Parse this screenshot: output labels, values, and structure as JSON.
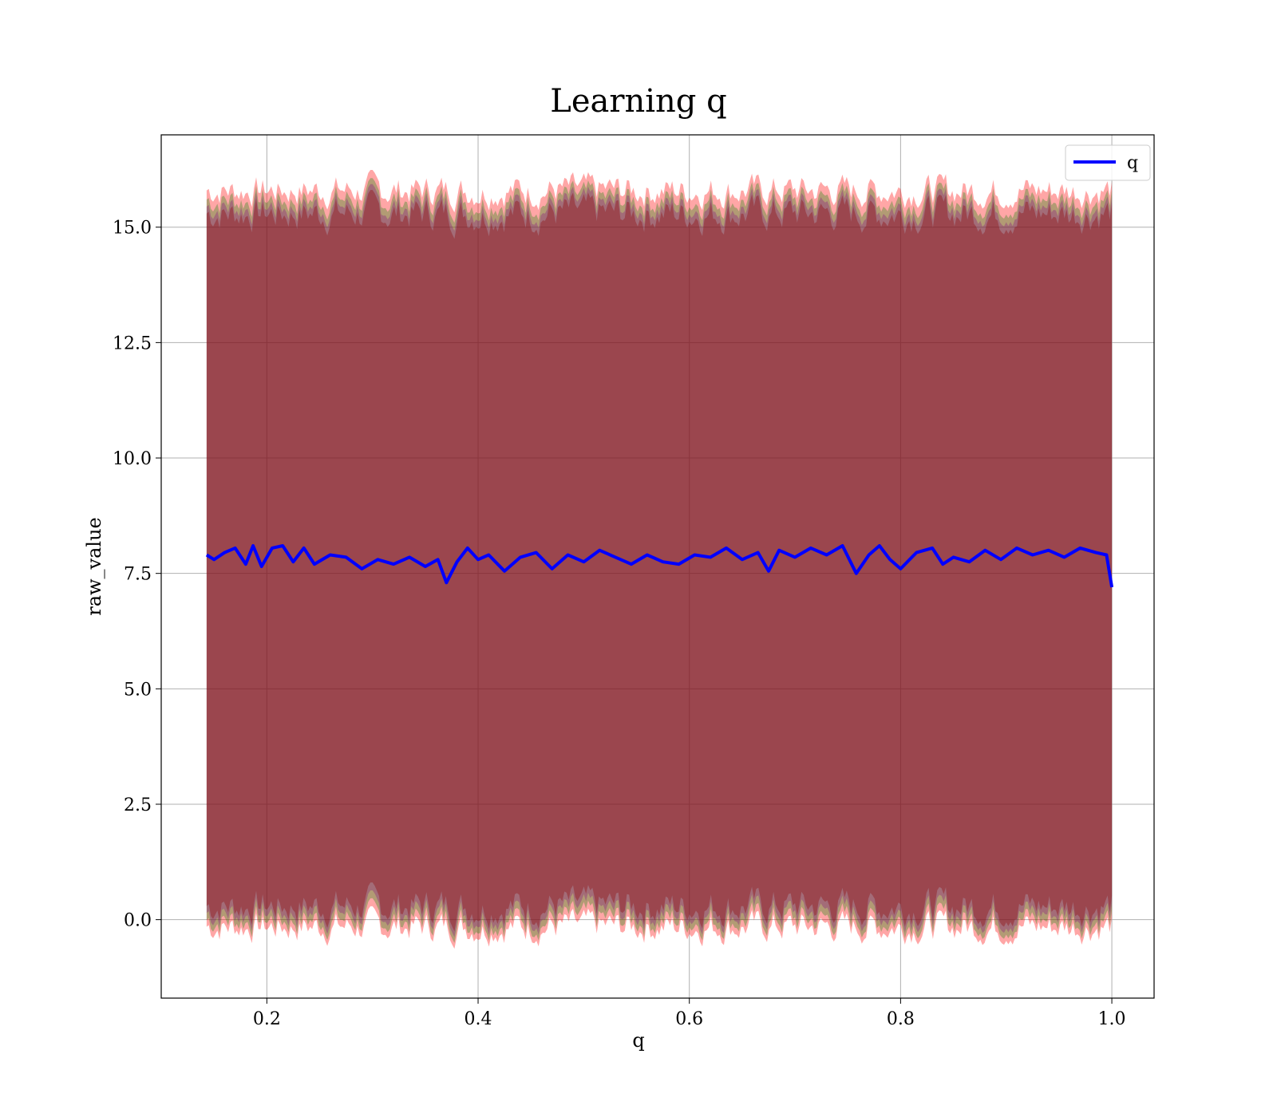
{
  "chart_data": {
    "type": "line",
    "title": "Learning q",
    "xlabel": "q",
    "ylabel": "raw_value",
    "xlim": [
      0.1,
      1.04
    ],
    "ylim": [
      -1.7,
      17.0
    ],
    "xticks": [
      "0.2",
      "0.4",
      "0.6",
      "0.8",
      "1.0"
    ],
    "xtick_values": [
      0.2,
      0.4,
      0.6,
      0.8,
      1.0
    ],
    "yticks": [
      "0.0",
      "2.5",
      "5.0",
      "7.5",
      "10.0",
      "12.5",
      "15.0"
    ],
    "ytick_values": [
      0.0,
      2.5,
      5.0,
      7.5,
      10.0,
      12.5,
      15.0
    ],
    "grid": true,
    "legend_placement": "top-right",
    "x_range": [
      0.143,
      1.0
    ],
    "series": [
      {
        "name": "q",
        "color": "#0000ff",
        "mean": 7.85,
        "x": [
          0.143,
          0.15,
          0.16,
          0.17,
          0.18,
          0.187,
          0.195,
          0.205,
          0.215,
          0.225,
          0.235,
          0.245,
          0.26,
          0.275,
          0.29,
          0.305,
          0.32,
          0.335,
          0.35,
          0.362,
          0.37,
          0.38,
          0.39,
          0.4,
          0.41,
          0.425,
          0.44,
          0.455,
          0.47,
          0.485,
          0.5,
          0.515,
          0.53,
          0.545,
          0.56,
          0.575,
          0.59,
          0.605,
          0.62,
          0.635,
          0.65,
          0.665,
          0.675,
          0.685,
          0.7,
          0.715,
          0.73,
          0.745,
          0.758,
          0.77,
          0.78,
          0.79,
          0.8,
          0.815,
          0.83,
          0.84,
          0.85,
          0.865,
          0.88,
          0.895,
          0.91,
          0.925,
          0.94,
          0.955,
          0.97,
          0.985,
          0.995,
          1.0
        ],
        "y": [
          7.9,
          7.8,
          7.95,
          8.05,
          7.7,
          8.1,
          7.65,
          8.05,
          8.1,
          7.75,
          8.05,
          7.7,
          7.9,
          7.85,
          7.6,
          7.8,
          7.7,
          7.85,
          7.65,
          7.8,
          7.3,
          7.75,
          8.05,
          7.8,
          7.9,
          7.55,
          7.85,
          7.95,
          7.6,
          7.9,
          7.75,
          8.0,
          7.85,
          7.7,
          7.9,
          7.75,
          7.7,
          7.9,
          7.85,
          8.05,
          7.8,
          7.95,
          7.55,
          8.0,
          7.85,
          8.05,
          7.9,
          8.1,
          7.5,
          7.9,
          8.1,
          7.8,
          7.6,
          7.95,
          8.05,
          7.7,
          7.85,
          7.75,
          8.0,
          7.8,
          8.05,
          7.9,
          8.0,
          7.85,
          8.05,
          7.95,
          7.9,
          7.2
        ]
      }
    ],
    "bands": [
      {
        "color": "#ff0000",
        "opacity": 0.35,
        "lower_edge": -0.15,
        "upper_edge": 15.8
      },
      {
        "color": "#008000",
        "opacity": 0.3,
        "lower_edge": 0.0,
        "upper_edge": 15.6
      },
      {
        "color": "#800080",
        "opacity": 0.3,
        "lower_edge": 0.15,
        "upper_edge": 15.45
      },
      {
        "color": "#8b0000",
        "opacity": 0.35,
        "lower_edge": 0.3,
        "upper_edge": 15.3
      }
    ]
  }
}
